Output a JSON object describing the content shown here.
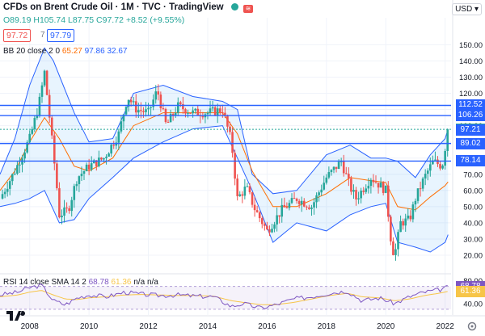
{
  "header": {
    "title": "CFDs on Brent Crude Oil · 1M · TVC · TradingView",
    "open": "O89.19",
    "high": "H105.74",
    "low": "L87.75",
    "close": "C97.72",
    "change": "+8.52 (+9.55%)"
  },
  "price_boxes": {
    "left": "97.72",
    "qty": "7",
    "right": "97.79"
  },
  "currency": "USD",
  "bb_legend": {
    "name": "BB 20 close 2 0",
    "basis": "65.27",
    "upper": "97.86",
    "lower": "32.67"
  },
  "rsi_legend": {
    "name": "RSI 14 close SMA 14 2",
    "rsi": "68.78",
    "sma": "61.36",
    "na1": "n/a",
    "na2": "n/a"
  },
  "price_axis_ticks": [
    "150.00",
    "140.00",
    "130.00",
    "120.00",
    "110.00",
    "100.00",
    "90.00",
    "80.00",
    "70.00",
    "60.00",
    "50.00",
    "40.00",
    "30.00",
    "20.00"
  ],
  "rsi_axis_ticks": [
    "80.00",
    "40.00"
  ],
  "time_axis_ticks": [
    "2008",
    "2010",
    "2012",
    "2014",
    "2016",
    "2018",
    "2020",
    "2022"
  ],
  "price_tags": [
    {
      "label": "112.52",
      "value": 112.52,
      "color": "#2962ff"
    },
    {
      "label": "106.26",
      "value": 106.26,
      "color": "#2962ff"
    },
    {
      "label": "97.72",
      "value": 97.72,
      "color": "#26a69a"
    },
    {
      "label": "97.21",
      "value": 97.21,
      "color": "#2962ff"
    },
    {
      "label": "89.02",
      "value": 89.02,
      "color": "#2962ff"
    },
    {
      "label": "78.14",
      "value": 78.14,
      "color": "#2962ff"
    }
  ],
  "colors": {
    "up": "#26a69a",
    "down": "#ef5350",
    "band": "#2962ff",
    "basis": "#ff6d00",
    "rsi": "#7e57c2",
    "rsi_sma": "#f7c548"
  },
  "chart_data": {
    "type": "candlestick",
    "title": "CFDs on Brent Crude Oil · 1M · TVC",
    "x_range": [
      2007.0,
      2022.2
    ],
    "ylim": [
      15,
      155
    ],
    "horizontal_levels": [
      112.52,
      106.26,
      97.72,
      97.21,
      89.02,
      78.14
    ],
    "close_series": {
      "x": [
        2007.0,
        2007.5,
        2008.0,
        2008.3,
        2008.5,
        2008.7,
        2008.9,
        2009.0,
        2009.3,
        2009.6,
        2010.0,
        2010.5,
        2011.0,
        2011.3,
        2011.6,
        2012.0,
        2012.3,
        2012.6,
        2013.0,
        2013.5,
        2014.0,
        2014.5,
        2014.8,
        2015.0,
        2015.3,
        2015.6,
        2016.0,
        2016.5,
        2017.0,
        2017.5,
        2018.0,
        2018.5,
        2018.8,
        2019.0,
        2019.5,
        2020.0,
        2020.2,
        2020.3,
        2020.5,
        2020.8,
        2021.0,
        2021.3,
        2021.6,
        2021.9,
        2022.1
      ],
      "close": [
        55,
        72,
        92,
        112,
        133,
        100,
        65,
        45,
        48,
        68,
        75,
        80,
        95,
        118,
        110,
        108,
        122,
        100,
        112,
        108,
        108,
        110,
        90,
        55,
        62,
        48,
        35,
        48,
        55,
        50,
        68,
        78,
        62,
        55,
        68,
        60,
        25,
        20,
        40,
        42,
        55,
        68,
        78,
        75,
        97.72
      ]
    },
    "bollinger": {
      "params": "BB 20 close 2 0",
      "basis_last": 65.27,
      "upper_last": 97.86,
      "lower_last": 32.67,
      "upper": {
        "x": [
          2007.0,
          2007.5,
          2008.0,
          2008.5,
          2008.8,
          2009.5,
          2010.0,
          2010.8,
          2011.5,
          2012.5,
          2013.5,
          2014.5,
          2015.0,
          2015.5,
          2016.2,
          2017.0,
          2018.0,
          2018.8,
          2019.5,
          2020.0,
          2020.4,
          2021.0,
          2021.5,
          2022.0,
          2022.1
        ],
        "y": [
          70,
          92,
          125,
          148,
          140,
          108,
          90,
          92,
          120,
          125,
          118,
          115,
          110,
          70,
          58,
          60,
          82,
          88,
          80,
          80,
          78,
          68,
          82,
          92,
          97.86
        ]
      },
      "basis": {
        "x": [
          2007.0,
          2007.5,
          2008.0,
          2008.5,
          2009.0,
          2009.5,
          2010.0,
          2010.8,
          2011.5,
          2012.5,
          2013.5,
          2014.5,
          2015.0,
          2015.5,
          2016.2,
          2017.0,
          2018.0,
          2018.8,
          2019.5,
          2020.0,
          2020.4,
          2021.0,
          2021.5,
          2022.0,
          2022.1
        ],
        "y": [
          60,
          72,
          90,
          105,
          92,
          75,
          72,
          80,
          100,
          108,
          108,
          108,
          95,
          72,
          50,
          50,
          58,
          68,
          66,
          65,
          50,
          48,
          56,
          63,
          65.27
        ]
      },
      "lower": {
        "x": [
          2007.0,
          2007.5,
          2008.0,
          2008.5,
          2009.0,
          2009.5,
          2010.0,
          2010.8,
          2011.5,
          2012.5,
          2013.5,
          2014.5,
          2015.0,
          2015.5,
          2016.2,
          2017.0,
          2018.0,
          2018.8,
          2019.5,
          2020.0,
          2020.4,
          2021.0,
          2021.5,
          2022.0,
          2022.1
        ],
        "y": [
          50,
          52,
          55,
          60,
          40,
          42,
          55,
          68,
          80,
          90,
          98,
          100,
          80,
          60,
          28,
          40,
          35,
          45,
          50,
          52,
          28,
          25,
          22,
          28,
          32.67
        ]
      }
    },
    "rsi": {
      "params": "RSI 14 close SMA 14 2",
      "rsi_last": 68.78,
      "sma_last": 61.36,
      "ylim": [
        20,
        85
      ],
      "x": [
        2007.0,
        2007.6,
        2008.0,
        2008.4,
        2008.8,
        2009.2,
        2009.6,
        2010.0,
        2010.6,
        2011.2,
        2011.8,
        2012.4,
        2013.0,
        2013.6,
        2014.2,
        2014.8,
        2015.2,
        2015.8,
        2016.3,
        2016.9,
        2017.5,
        2018.1,
        2018.7,
        2019.2,
        2019.8,
        2020.3,
        2020.8,
        2021.3,
        2021.8,
        2022.1
      ],
      "rsi_values": [
        55,
        60,
        68,
        72,
        45,
        38,
        50,
        55,
        52,
        60,
        56,
        54,
        55,
        53,
        52,
        35,
        40,
        32,
        38,
        48,
        52,
        58,
        62,
        45,
        50,
        40,
        52,
        60,
        64,
        68.78
      ],
      "sma_values": [
        52,
        55,
        60,
        63,
        55,
        48,
        47,
        50,
        52,
        55,
        56,
        55,
        54,
        54,
        53,
        45,
        42,
        38,
        38,
        42,
        48,
        54,
        58,
        52,
        50,
        45,
        48,
        54,
        58,
        61.36
      ]
    }
  }
}
